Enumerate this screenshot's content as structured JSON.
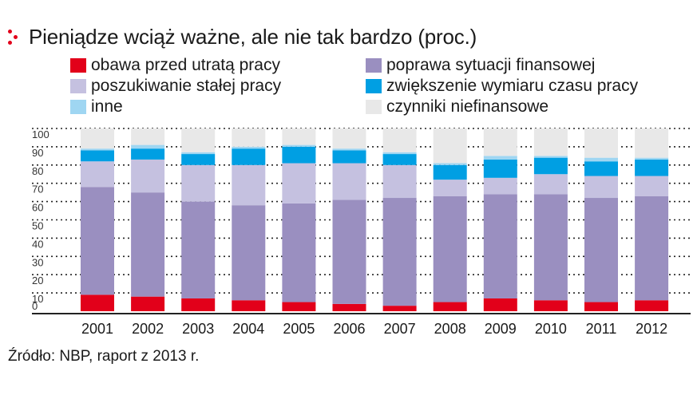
{
  "title": "Pieniądze wciąż ważne, ale nie tak bardzo (proc.)",
  "source": "Źródło: NBP, raport z 2013 r.",
  "colors": {
    "accent": "#e2001a"
  },
  "chart_data": {
    "type": "bar",
    "stacked": true,
    "title": "Pieniądze wciąż ważne, ale nie tak bardzo (proc.)",
    "xlabel": "",
    "ylabel": "",
    "ylim": [
      0,
      100
    ],
    "yticks": [
      "0",
      "10",
      "20",
      "30",
      "40",
      "50",
      "60",
      "70",
      "80",
      "90",
      "100"
    ],
    "grid": true,
    "legend_position": "top",
    "categories": [
      "2001",
      "2002",
      "2003",
      "2004",
      "2005",
      "2006",
      "2007",
      "2008",
      "2009",
      "2010",
      "2011",
      "2012"
    ],
    "series": [
      {
        "name": "obawa przed utratą pracy",
        "color": "#e2001a",
        "values": [
          9,
          8,
          7,
          6,
          5,
          4,
          3,
          5,
          7,
          6,
          5,
          6
        ]
      },
      {
        "name": "poprawa sytuacji finansowej",
        "color": "#9a8fc0",
        "values": [
          59,
          57,
          53,
          52,
          54,
          57,
          59,
          58,
          57,
          58,
          57,
          57
        ]
      },
      {
        "name": "poszukiwanie stałej pracy",
        "color": "#c5c1e0",
        "values": [
          14,
          18,
          20,
          22,
          22,
          20,
          18,
          9,
          9,
          11,
          12,
          11
        ]
      },
      {
        "name": "zwiększenie wymiaru czasu pracy",
        "color": "#009fe3",
        "values": [
          6,
          6,
          6,
          9,
          9,
          7,
          6,
          8,
          10,
          9,
          8,
          9
        ]
      },
      {
        "name": "inne",
        "color": "#9fd6f2",
        "values": [
          1,
          2,
          1,
          1,
          1,
          1,
          1,
          1,
          2,
          1,
          2,
          1
        ]
      },
      {
        "name": "czynniki niefinansowe",
        "color": "#e8e8e8",
        "values": [
          11,
          9,
          13,
          10,
          9,
          11,
          13,
          19,
          15,
          15,
          16,
          16
        ]
      }
    ]
  }
}
